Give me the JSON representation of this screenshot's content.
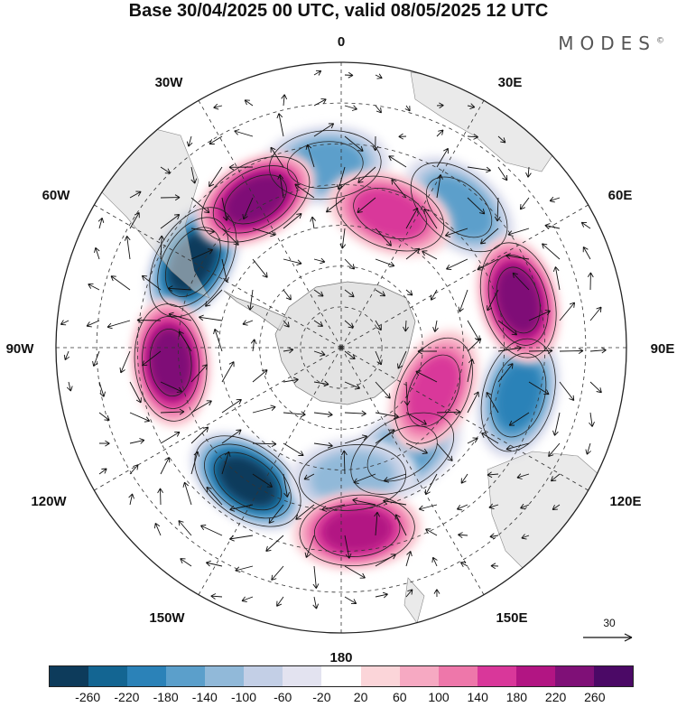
{
  "title": "Base 30/04/2025 00 UTC, valid 08/05/2025 12 UTC",
  "brand": "MODES",
  "brand_mark": "©",
  "longitude_labels": [
    "0",
    "30E",
    "60E",
    "90E",
    "120E",
    "150E",
    "180",
    "150W",
    "120W",
    "90W",
    "60W",
    "30W"
  ],
  "reference_vector_label": "30",
  "colorbar": {
    "ticks": [
      "-260",
      "-220",
      "-180",
      "-140",
      "-100",
      "-60",
      "-20",
      "20",
      "60",
      "100",
      "140",
      "180",
      "220",
      "260"
    ],
    "colors": [
      "#0d3b5b",
      "#136592",
      "#2b82b8",
      "#5b9fcb",
      "#91b9d9",
      "#c3cfe6",
      "#e3e3f0",
      "#ffffff",
      "#fbd5d9",
      "#f6a9c2",
      "#ee77aa",
      "#d9379a",
      "#b21583",
      "#7f1077",
      "#4b0966"
    ]
  },
  "anomalies": [
    {
      "sign": "negative",
      "peak": -260,
      "lon": -60,
      "lat": -48
    },
    {
      "sign": "negative",
      "peak": -260,
      "lon": -145,
      "lat": -50
    },
    {
      "sign": "negative",
      "peak": -140,
      "lon": 40,
      "lat": -45
    },
    {
      "sign": "negative",
      "peak": -180,
      "lon": 105,
      "lat": -45
    },
    {
      "sign": "negative",
      "peak": -140,
      "lon": 150,
      "lat": -60
    },
    {
      "sign": "negative",
      "peak": -100,
      "lon": 175,
      "lat": -58
    },
    {
      "sign": "negative",
      "peak": -140,
      "lon": -5,
      "lat": -45
    },
    {
      "sign": "positive",
      "peak": 220,
      "lon": -30,
      "lat": -48
    },
    {
      "sign": "positive",
      "peak": 220,
      "lon": -95,
      "lat": -48
    },
    {
      "sign": "positive",
      "peak": 180,
      "lon": 175,
      "lat": -45
    },
    {
      "sign": "positive",
      "peak": 220,
      "lon": 75,
      "lat": -45
    },
    {
      "sign": "positive",
      "peak": 140,
      "lon": 20,
      "lat": -55
    },
    {
      "sign": "positive",
      "peak": 140,
      "lon": 115,
      "lat": -65
    }
  ]
}
